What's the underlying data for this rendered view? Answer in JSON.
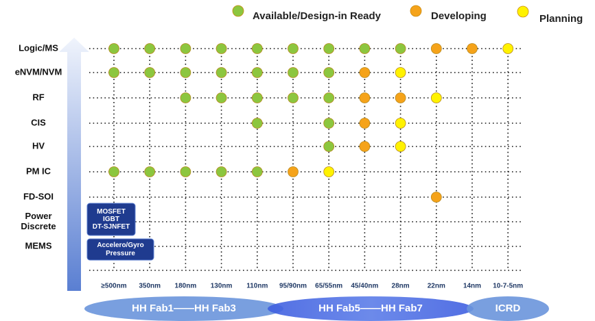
{
  "legend": {
    "items": [
      {
        "label": "Available/Design-in Ready",
        "color": "#8cc63f"
      },
      {
        "label": "Developing",
        "color": "#f5a31a"
      },
      {
        "label": "Planning",
        "color": "#fff200"
      }
    ]
  },
  "columns": [
    "≥500nm",
    "350nm",
    "180nm",
    "130nm",
    "110nm",
    "95/90nm",
    "65/55nm",
    "45/40nm",
    "28nm",
    "22nm",
    "14nm",
    "10-7-5nm"
  ],
  "rows": [
    {
      "label": [
        "Logic/MS"
      ],
      "cells": [
        "#8cc63f",
        "#8cc63f",
        "#8cc63f",
        "#8cc63f",
        "#8cc63f",
        "#8cc63f",
        "#8cc63f",
        "#8cc63f",
        "#8cc63f",
        "#f5a31a",
        "#f5a31a",
        "#fff200"
      ]
    },
    {
      "label": [
        "eNVM/NVM"
      ],
      "cells": [
        "#8cc63f",
        "#8cc63f",
        "#8cc63f",
        "#8cc63f",
        "#8cc63f",
        "#8cc63f",
        "#8cc63f",
        "#f5a31a",
        "#fff200",
        null,
        null,
        null
      ]
    },
    {
      "label": [
        "RF"
      ],
      "cells": [
        null,
        null,
        "#8cc63f",
        "#8cc63f",
        "#8cc63f",
        "#8cc63f",
        "#8cc63f",
        "#f5a31a",
        "#f5a31a",
        "#fff200",
        null,
        null
      ]
    },
    {
      "label": [
        "CIS"
      ],
      "cells": [
        null,
        null,
        null,
        null,
        "#8cc63f",
        null,
        "#8cc63f",
        "#f5a31a",
        "#fff200",
        null,
        null,
        null
      ]
    },
    {
      "label": [
        "HV"
      ],
      "cells": [
        null,
        null,
        null,
        null,
        null,
        null,
        "#8cc63f",
        "#f5a31a",
        "#fff200",
        null,
        null,
        null
      ]
    },
    {
      "label": [
        "PM IC"
      ],
      "cells": [
        "#8cc63f",
        "#8cc63f",
        "#8cc63f",
        "#8cc63f",
        "#8cc63f",
        "#f5a31a",
        "#fff200",
        null,
        null,
        null,
        null,
        null
      ]
    },
    {
      "label": [
        "FD-SOI"
      ],
      "cells": [
        null,
        null,
        null,
        null,
        null,
        null,
        null,
        null,
        null,
        "#f5a31a",
        null,
        null
      ]
    },
    {
      "label": [
        "Power",
        "Discrete"
      ],
      "cells": [
        null,
        null,
        null,
        null,
        null,
        null,
        null,
        null,
        null,
        null,
        null,
        null
      ]
    },
    {
      "label": [
        "MEMS"
      ],
      "cells": [
        null,
        null,
        null,
        null,
        null,
        null,
        null,
        null,
        null,
        null,
        null,
        null
      ]
    }
  ],
  "boxes": [
    [
      "MOSFET",
      "IGBT",
      "DT-SJNFET"
    ],
    [
      "Accelero/Gyro",
      "Pressure"
    ]
  ],
  "fabs": [
    "HH Fab1——HH Fab3",
    "HH Fab5——HH Fab7",
    "ICRD"
  ]
}
